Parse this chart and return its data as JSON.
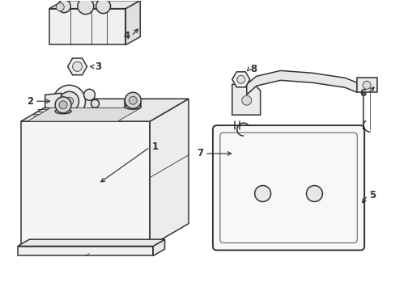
{
  "background_color": "#ffffff",
  "line_color": "#333333",
  "figsize": [
    4.89,
    3.6
  ],
  "dpi": 100,
  "lw_main": 1.1,
  "lw_thin": 0.6
}
